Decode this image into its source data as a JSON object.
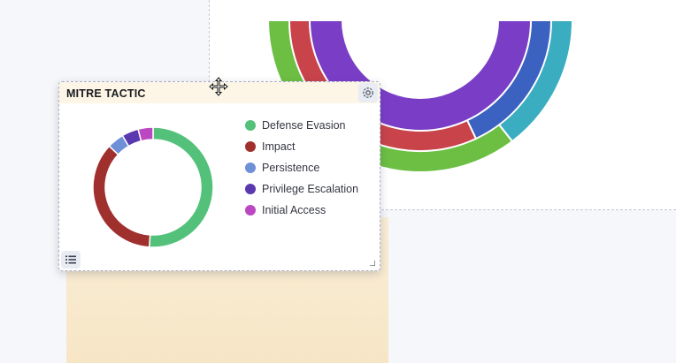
{
  "widget": {
    "title": "MITRE TACTIC",
    "settings_icon": "gear-icon",
    "list_icon": "list-icon",
    "drag_icon": "move-icon",
    "legend": [
      {
        "label": "Defense Evasion",
        "color": "#54c17a"
      },
      {
        "label": "Impact",
        "color": "#a0302e"
      },
      {
        "label": "Persistence",
        "color": "#6f8fd6"
      },
      {
        "label": "Privilege Escalation",
        "color": "#5a38b0"
      },
      {
        "label": "Initial Access",
        "color": "#bb48c0"
      }
    ]
  },
  "chart_data": [
    {
      "type": "pie",
      "variant": "donut",
      "labels": [
        "Defense Evasion",
        "Impact",
        "Persistence",
        "Privilege Escalation",
        "Initial Access"
      ],
      "values": [
        51,
        36,
        4.5,
        4.5,
        4
      ],
      "colors": [
        "#54c17a",
        "#a0302e",
        "#6f8fd6",
        "#5a38b0",
        "#bb48c0"
      ],
      "legend": "right"
    }
  ]
}
